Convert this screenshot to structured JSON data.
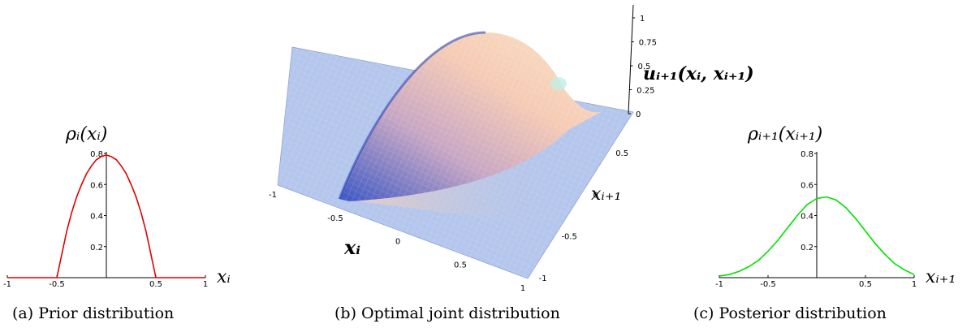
{
  "chart_data": [
    {
      "type": "line",
      "caption": "(a) Prior distribution",
      "title": "ρᵢ(xᵢ)",
      "xlabel": "xᵢ",
      "xlim": [
        -1,
        1
      ],
      "ylim": [
        0,
        0.8
      ],
      "xticks": [
        "-1",
        "-0.5",
        "0.5",
        "1"
      ],
      "yticks": [
        "0.2",
        "0.4",
        "0.6",
        "0.8"
      ],
      "color": "#e00000",
      "series": [
        {
          "x": [
            -1,
            -0.5,
            -0.45,
            -0.4,
            -0.35,
            -0.3,
            -0.25,
            -0.2,
            -0.15,
            -0.1,
            -0.05,
            0,
            0.05,
            0.1,
            0.15,
            0.2,
            0.25,
            0.3,
            0.35,
            0.4,
            0.45,
            0.5,
            1
          ],
          "values": [
            0,
            0,
            0.15,
            0.3,
            0.42,
            0.52,
            0.6,
            0.67,
            0.72,
            0.76,
            0.78,
            0.79,
            0.78,
            0.76,
            0.72,
            0.67,
            0.6,
            0.52,
            0.42,
            0.3,
            0.15,
            0,
            0
          ]
        }
      ]
    },
    {
      "type": "surface",
      "caption": "(b) Optimal joint distribution",
      "zlabel": "uᵢ₊₁(xᵢ, xᵢ₊₁)",
      "xlabel": "xᵢ",
      "ylabel": "xᵢ₊₁",
      "xticks": [
        "-1",
        "-0.5",
        "0",
        "0.5",
        "1"
      ],
      "yticks": [
        "-1",
        "-0.5",
        "0",
        "0.5"
      ],
      "zticks": [
        "0",
        "0.25",
        "0.5",
        "0.75",
        "1"
      ],
      "zlim": [
        0,
        1
      ],
      "colors": [
        "#b4c6ec",
        "#f3c7b4",
        "#4a62c8"
      ]
    },
    {
      "type": "line",
      "caption": "(c) Posterior distribution",
      "title": "ρᵢ₊₁(xᵢ₊₁)",
      "xlabel": "xᵢ₊₁",
      "xlim": [
        -1,
        1
      ],
      "ylim": [
        0,
        0.8
      ],
      "xticks": [
        "-1",
        "-0.5",
        "0.5",
        "1"
      ],
      "yticks": [
        "0.2",
        "0.4",
        "0.6",
        "0.8"
      ],
      "color": "#00e000",
      "series": [
        {
          "x": [
            -1,
            -0.9,
            -0.8,
            -0.7,
            -0.6,
            -0.5,
            -0.4,
            -0.3,
            -0.2,
            -0.1,
            0,
            0.1,
            0.2,
            0.3,
            0.4,
            0.5,
            0.6,
            0.7,
            0.8,
            0.9,
            1
          ],
          "values": [
            0.01,
            0.02,
            0.04,
            0.07,
            0.11,
            0.17,
            0.24,
            0.32,
            0.4,
            0.47,
            0.51,
            0.52,
            0.5,
            0.45,
            0.38,
            0.3,
            0.22,
            0.15,
            0.09,
            0.05,
            0.02
          ]
        }
      ]
    }
  ]
}
